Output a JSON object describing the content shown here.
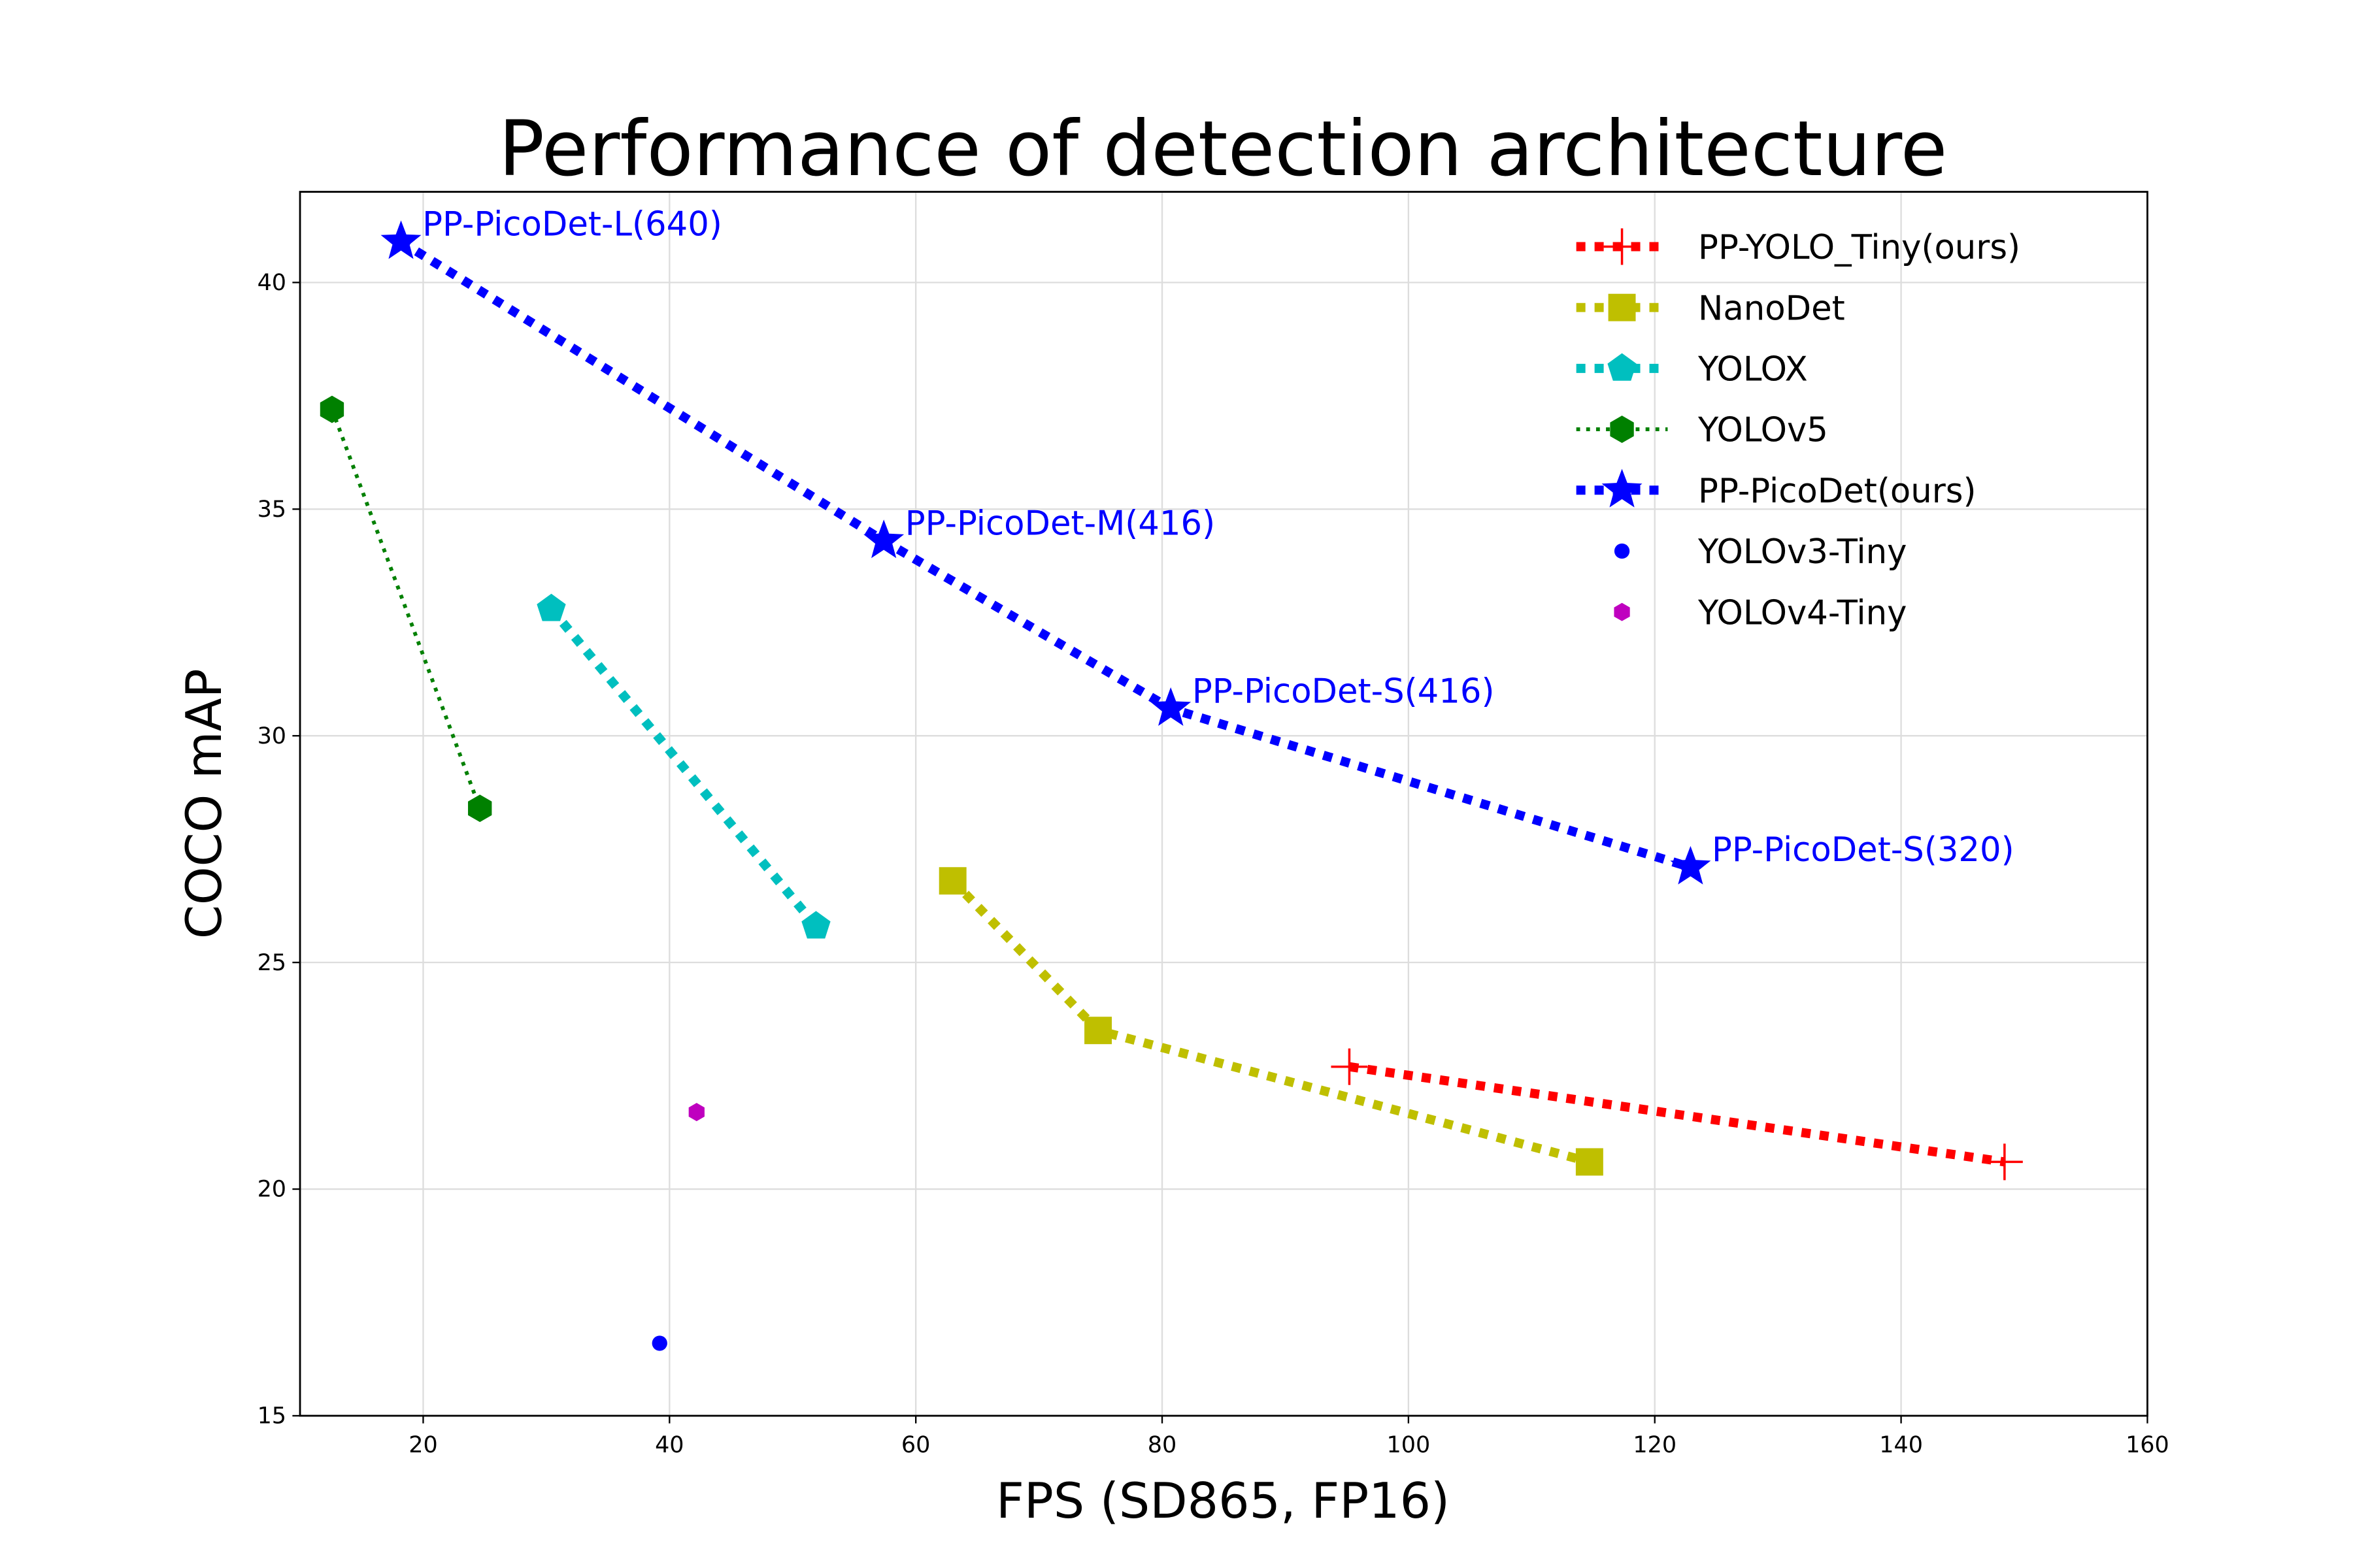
{
  "chart_data": {
    "type": "line",
    "title": "Performance of detection architecture",
    "xlabel": "FPS (SD865, FP16)",
    "ylabel": "COCO mAP",
    "xlim": [
      10,
      160
    ],
    "ylim": [
      15,
      42
    ],
    "xticks": [
      20,
      40,
      60,
      80,
      100,
      120,
      140,
      160
    ],
    "yticks": [
      15,
      20,
      25,
      30,
      35,
      40
    ],
    "grid": true,
    "legend_position": "top-right",
    "series": [
      {
        "name": "PP-YOLO_Tiny(ours)",
        "color": "#ff0000",
        "marker": "plus",
        "linestyle": "dotted-thick",
        "x": [
          95.2,
          148.4
        ],
        "y": [
          22.7,
          20.6
        ]
      },
      {
        "name": "NanoDet",
        "color": "#bfbf00",
        "marker": "square",
        "linestyle": "dotted-thick",
        "x": [
          63.0,
          74.8,
          114.7
        ],
        "y": [
          26.8,
          23.5,
          20.6
        ]
      },
      {
        "name": "YOLOX",
        "color": "#00bfbf",
        "marker": "pentagon",
        "linestyle": "dotted-thick",
        "x": [
          30.4,
          51.9
        ],
        "y": [
          32.8,
          25.8
        ]
      },
      {
        "name": "YOLOv5",
        "color": "#008000",
        "marker": "hexagon",
        "linestyle": "dotted",
        "x": [
          12.6,
          24.6
        ],
        "y": [
          37.2,
          28.4
        ]
      },
      {
        "name": "PP-PicoDet(ours)",
        "color": "#0000ff",
        "marker": "star",
        "linestyle": "dotted-thick",
        "x": [
          18.2,
          57.4,
          80.7,
          122.9
        ],
        "y": [
          40.9,
          34.3,
          30.6,
          27.1
        ],
        "point_labels": [
          "PP-PicoDet-L(640)",
          "PP-PicoDet-M(416)",
          "PP-PicoDet-S(416)",
          "PP-PicoDet-S(320)"
        ]
      },
      {
        "name": "YOLOv3-Tiny",
        "color": "#0000ff",
        "marker": "circle",
        "linestyle": "none",
        "x": [
          39.2
        ],
        "y": [
          16.6
        ]
      },
      {
        "name": "YOLOv4-Tiny",
        "color": "#bf00bf",
        "marker": "small-hexagon",
        "linestyle": "none",
        "x": [
          42.2
        ],
        "y": [
          21.7
        ]
      }
    ]
  }
}
